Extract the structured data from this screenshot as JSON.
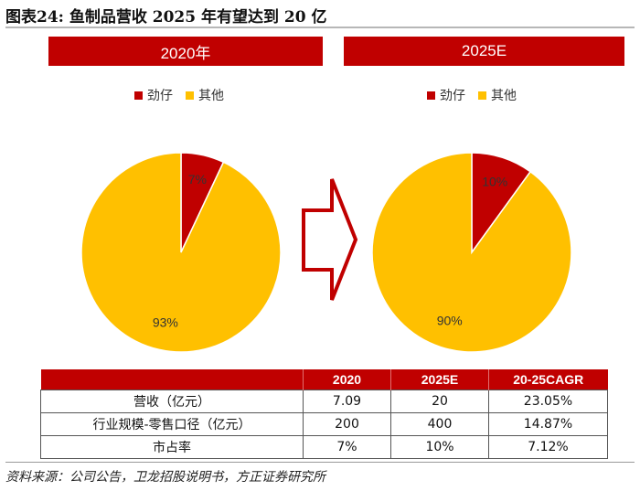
{
  "title": "图表24: 鱼制品营收 2025 年有望达到 20 亿",
  "source": "资料来源：公司公告，卫龙招股说明书，方正证券研究所",
  "colors": {
    "red": "#c00000",
    "yellow": "#ffc000"
  },
  "chart_data": [
    {
      "type": "pie",
      "title": "2020年",
      "legend": [
        "劲仔",
        "其他"
      ],
      "slices": [
        {
          "label": "劲仔",
          "value": 7,
          "display": "7%",
          "color": "#c00000"
        },
        {
          "label": "其他",
          "value": 93,
          "display": "93%",
          "color": "#ffc000"
        }
      ]
    },
    {
      "type": "pie",
      "title": "2025E",
      "legend": [
        "劲仔",
        "其他"
      ],
      "slices": [
        {
          "label": "劲仔",
          "value": 10,
          "display": "10%",
          "color": "#c00000"
        },
        {
          "label": "其他",
          "value": 90,
          "display": "90%",
          "color": "#ffc000"
        }
      ]
    },
    {
      "type": "table",
      "columns": [
        "",
        "2020",
        "2025E",
        "20-25CAGR"
      ],
      "rows": [
        [
          "营收（亿元）",
          "7.09",
          "20",
          "23.05%"
        ],
        [
          "行业规模-零售口径（亿元）",
          "200",
          "400",
          "14.87%"
        ],
        [
          "市占率",
          "7%",
          "10%",
          "7.12%"
        ]
      ]
    }
  ]
}
